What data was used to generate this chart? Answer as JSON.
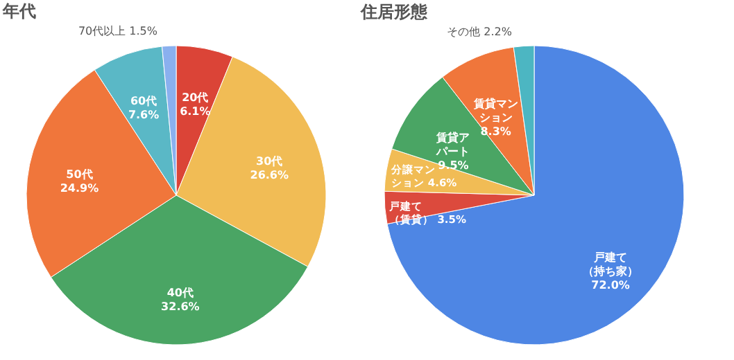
{
  "chart_data": [
    {
      "type": "pie",
      "title": "年代",
      "categories": [
        "20代",
        "30代",
        "40代",
        "50代",
        "60代",
        "70代以上"
      ],
      "values": [
        6.1,
        26.6,
        32.6,
        24.9,
        7.6,
        1.5
      ],
      "value_labels": [
        "6.1%",
        "26.6%",
        "32.6%",
        "24.9%",
        "7.6%",
        "1.5%"
      ],
      "colors": [
        "#db4437",
        "#f1bc55",
        "#4aa564",
        "#f0763b",
        "#5ab8c6",
        "#8ab0ef"
      ],
      "legend": false
    },
    {
      "type": "pie",
      "title": "住居形態",
      "categories": [
        "戸建て（持ち家）",
        "戸建て（賃貸）",
        "分譲マンション",
        "賃貸アパート",
        "賃貸マンション",
        "その他"
      ],
      "values": [
        72.0,
        3.5,
        4.6,
        9.5,
        8.3,
        2.2
      ],
      "value_labels": [
        "72.0%",
        "3.5%",
        "4.6%",
        "9.5%",
        "8.3%",
        "2.2%"
      ],
      "colors": [
        "#4e86e4",
        "#dc4a3d",
        "#f1bc55",
        "#4aa564",
        "#f0763b",
        "#4cb6c2"
      ],
      "legend": false
    }
  ]
}
